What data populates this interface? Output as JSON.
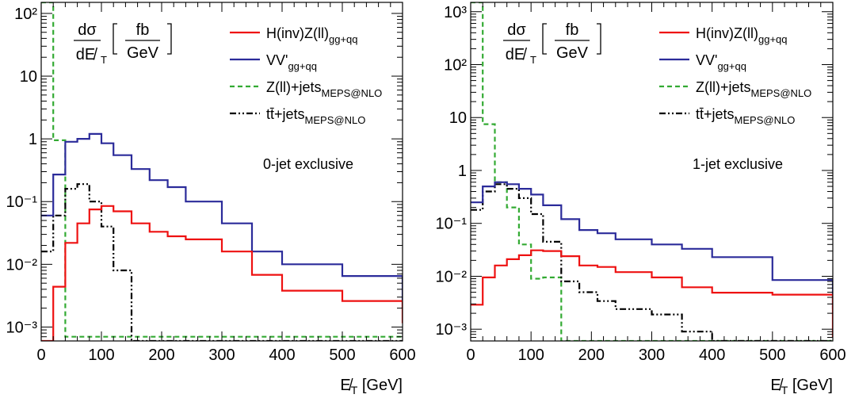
{
  "colors": {
    "hz": "#ee1111",
    "vv": "#2b2b9a",
    "zjets": "#33aa33",
    "tt": "#000000"
  },
  "yaxis_label": {
    "num": "dσ",
    "den": "dE̸",
    "den_sub": "T",
    "unit_num": "fb",
    "unit_den": "GeV"
  },
  "xaxis_label": {
    "main": "E̸",
    "sub": "T",
    "unit": " [GeV]"
  },
  "legend": [
    {
      "key": "hz",
      "base": "H(inv)Z(ll)",
      "sub": "gg+qq",
      "style": "solid"
    },
    {
      "key": "vv",
      "base": "VV'",
      "sub": "gg+qq",
      "style": "solid"
    },
    {
      "key": "zjets",
      "base": "Z(ll)+jets",
      "sub": "MEPS@NLO",
      "style": "dashed"
    },
    {
      "key": "tt",
      "base": "tt̄+jets",
      "sub": "MEPS@NLO",
      "style": "dashdot"
    }
  ],
  "chart_data": [
    {
      "type": "line",
      "subtype": "step-histogram",
      "annotation": "0-jet exclusive",
      "xlim": [
        0,
        600
      ],
      "ylim": [
        0.0006,
        150
      ],
      "yscale": "log",
      "xticks": [
        0,
        100,
        200,
        300,
        400,
        500,
        600
      ],
      "yticks": [
        {
          "v": 100,
          "label": "10²"
        },
        {
          "v": 10,
          "label": "10"
        },
        {
          "v": 1,
          "label": "1"
        },
        {
          "v": 0.1,
          "label": "10⁻¹"
        },
        {
          "v": 0.01,
          "label": "10⁻²"
        },
        {
          "v": 0.001,
          "label": "10⁻³"
        }
      ],
      "bin_edges": [
        0,
        20,
        40,
        60,
        80,
        100,
        120,
        150,
        180,
        210,
        240,
        300,
        350,
        400,
        500,
        600
      ],
      "series": [
        {
          "key": "vv",
          "values": [
            0.06,
            0.27,
            0.9,
            1.0,
            1.2,
            0.85,
            0.55,
            0.33,
            0.22,
            0.17,
            0.1,
            0.045,
            0.016,
            0.01,
            0.0065,
            0.002
          ]
        },
        {
          "key": "hz",
          "values": [
            0.00045,
            0.0044,
            0.022,
            0.045,
            0.075,
            0.085,
            0.07,
            0.045,
            0.033,
            0.028,
            0.025,
            0.016,
            0.0068,
            0.0038,
            0.0026,
            0.00115
          ]
        },
        {
          "key": "zjets",
          "values": [
            150,
            0.95,
            0.0007,
            0.0007,
            0.0007,
            0.0007,
            0.0007,
            0.0007,
            0.0007,
            0.0007,
            0.0007,
            0.0007,
            0.0007,
            0.0007,
            0.0007,
            0.0007
          ]
        },
        {
          "key": "tt",
          "values": [
            0.016,
            0.06,
            0.16,
            0.19,
            0.1,
            0.04,
            0.008,
            0.0005,
            0.0005,
            0.0005,
            0.0005,
            0.0005,
            0.0005,
            0.0005,
            0.0005,
            0.0005
          ]
        }
      ]
    },
    {
      "type": "line",
      "subtype": "step-histogram",
      "annotation": "1-jet exclusive",
      "xlim": [
        0,
        600
      ],
      "ylim": [
        0.0006,
        1500
      ],
      "yscale": "log",
      "xticks": [
        0,
        100,
        200,
        300,
        400,
        500,
        600
      ],
      "yticks": [
        {
          "v": 1000,
          "label": "10³"
        },
        {
          "v": 100,
          "label": "10²"
        },
        {
          "v": 10,
          "label": "10"
        },
        {
          "v": 1,
          "label": "1"
        },
        {
          "v": 0.1,
          "label": "10⁻¹"
        },
        {
          "v": 0.01,
          "label": "10⁻²"
        },
        {
          "v": 0.001,
          "label": "10⁻³"
        }
      ],
      "bin_edges": [
        0,
        20,
        40,
        60,
        80,
        100,
        120,
        150,
        180,
        210,
        240,
        300,
        350,
        400,
        500,
        600
      ],
      "series": [
        {
          "key": "vv",
          "values": [
            0.25,
            0.5,
            0.6,
            0.55,
            0.45,
            0.35,
            0.22,
            0.12,
            0.075,
            0.065,
            0.05,
            0.04,
            0.033,
            0.023,
            0.0085,
            0.0024
          ]
        },
        {
          "key": "hz",
          "values": [
            0.0029,
            0.0095,
            0.016,
            0.021,
            0.025,
            0.031,
            0.03,
            0.024,
            0.016,
            0.015,
            0.012,
            0.0095,
            0.0062,
            0.0049,
            0.0045,
            0.0007
          ]
        },
        {
          "key": "zjets",
          "values": [
            1500,
            7.5,
            0.6,
            0.2,
            0.04,
            0.009,
            0.0095,
            0.0006,
            0.0006,
            0.0006,
            0.0006,
            0.0006,
            0.0006,
            0.0006,
            0.0006,
            0.0006
          ]
        },
        {
          "key": "tt",
          "values": [
            0.18,
            0.4,
            0.55,
            0.45,
            0.3,
            0.15,
            0.045,
            0.008,
            0.005,
            0.0034,
            0.0024,
            0.0019,
            0.0009,
            0.0006,
            0.0006,
            0.0006
          ]
        }
      ]
    }
  ]
}
